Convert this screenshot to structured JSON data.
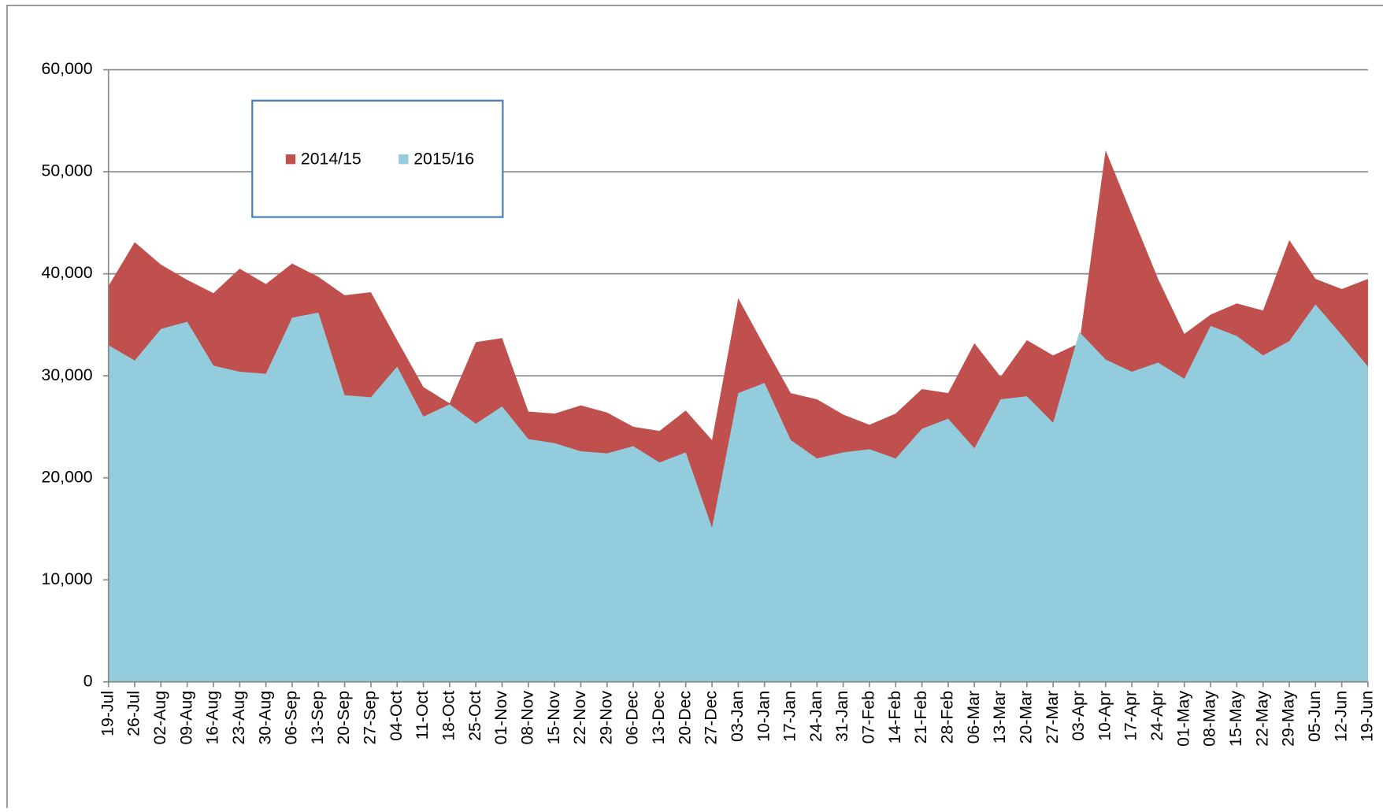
{
  "chart_data": {
    "type": "area",
    "categories": [
      "19-Jul",
      "26-Jul",
      "02-Aug",
      "09-Aug",
      "16-Aug",
      "23-Aug",
      "30-Aug",
      "06-Sep",
      "13-Sep",
      "20-Sep",
      "27-Sep",
      "04-Oct",
      "11-Oct",
      "18-Oct",
      "25-Oct",
      "01-Nov",
      "08-Nov",
      "15-Nov",
      "22-Nov",
      "29-Nov",
      "06-Dec",
      "13-Dec",
      "20-Dec",
      "27-Dec",
      "03-Jan",
      "10-Jan",
      "17-Jan",
      "24-Jan",
      "31-Jan",
      "07-Feb",
      "14-Feb",
      "21-Feb",
      "28-Feb",
      "06-Mar",
      "13-Mar",
      "20-Mar",
      "27-Mar",
      "03-Apr",
      "10-Apr",
      "17-Apr",
      "24-Apr",
      "01-May",
      "08-May",
      "15-May",
      "22-May",
      "29-May",
      "05-Jun",
      "12-Jun",
      "19-Jun"
    ],
    "series": [
      {
        "name": "2014/15",
        "color": "#c0504d",
        "values": [
          38800,
          43100,
          40900,
          39400,
          38100,
          40500,
          39000,
          41000,
          39700,
          37900,
          38200,
          33500,
          28900,
          27300,
          33300,
          33700,
          26500,
          26300,
          27100,
          26400,
          25000,
          24600,
          26600,
          23700,
          37600,
          32900,
          28300,
          27700,
          26200,
          25200,
          26300,
          28700,
          28300,
          33200,
          29900,
          33500,
          32000,
          33200,
          52100,
          45800,
          39500,
          34100,
          36000,
          37100,
          36400,
          43300,
          39500,
          38500,
          39500
        ]
      },
      {
        "name": "2015/16",
        "color": "#93cddd",
        "values": [
          33000,
          31500,
          34600,
          35300,
          31000,
          30400,
          30200,
          35700,
          36200,
          28100,
          27900,
          30900,
          26000,
          27200,
          25300,
          27000,
          23800,
          23400,
          22600,
          22400,
          23100,
          21500,
          22500,
          15100,
          28300,
          29300,
          23700,
          21900,
          22500,
          22800,
          21900,
          24800,
          25800,
          22900,
          27700,
          28000,
          25400,
          34300,
          31600,
          30400,
          31300,
          29700,
          34900,
          33900,
          32000,
          33400,
          37000,
          34000,
          30900
        ]
      }
    ],
    "ylim": [
      0,
      60000
    ],
    "yticks": [
      0,
      {
        "value": 10000,
        "label": "10,000"
      },
      {
        "value": 20000,
        "label": "20,000"
      },
      {
        "value": 30000,
        "label": "30,000"
      },
      {
        "value": 40000,
        "label": "40,000"
      },
      {
        "value": 50000,
        "label": "50,000"
      },
      {
        "value": 60000,
        "label": "60,000"
      }
    ],
    "grid": true
  }
}
